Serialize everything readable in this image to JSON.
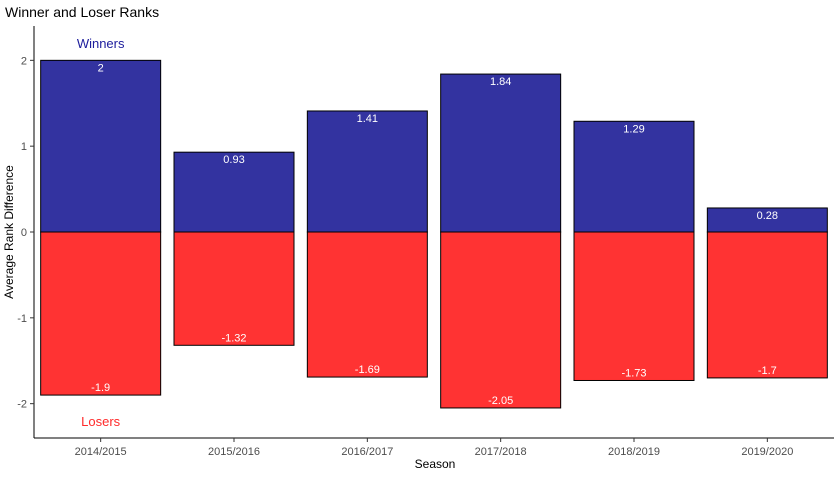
{
  "chart_data": {
    "type": "bar",
    "title": "Winner and Loser Ranks",
    "xlabel": "Season",
    "ylabel": "Average Rank Difference",
    "categories": [
      "2014/2015",
      "2015/2016",
      "2016/2017",
      "2017/2018",
      "2018/2019",
      "2019/2020"
    ],
    "series": [
      {
        "name": "Winners",
        "color": "#3333a0",
        "values": [
          2,
          0.93,
          1.41,
          1.84,
          1.29,
          0.28
        ],
        "labels": [
          "2",
          "0.93",
          "1.41",
          "1.84",
          "1.29",
          "0.28"
        ]
      },
      {
        "name": "Losers",
        "color": "#ff3333",
        "values": [
          -1.9,
          -1.32,
          -1.69,
          -2.05,
          -1.73,
          -1.7
        ],
        "labels": [
          "-1.9",
          "-1.32",
          "-1.69",
          "-2.05",
          "-1.73",
          "-1.7"
        ]
      }
    ],
    "annotations": [
      {
        "text": "Winners",
        "color": "#1c1c9c",
        "category": "2014/2015",
        "y": 2.2
      },
      {
        "text": "Losers",
        "color": "#ff2a2a",
        "category": "2014/2015",
        "y": -2.2
      }
    ],
    "ylim": [
      -2.4,
      2.4
    ],
    "yticks": [
      -2,
      -1,
      0,
      1,
      2
    ],
    "grid": false,
    "legend": "none"
  }
}
